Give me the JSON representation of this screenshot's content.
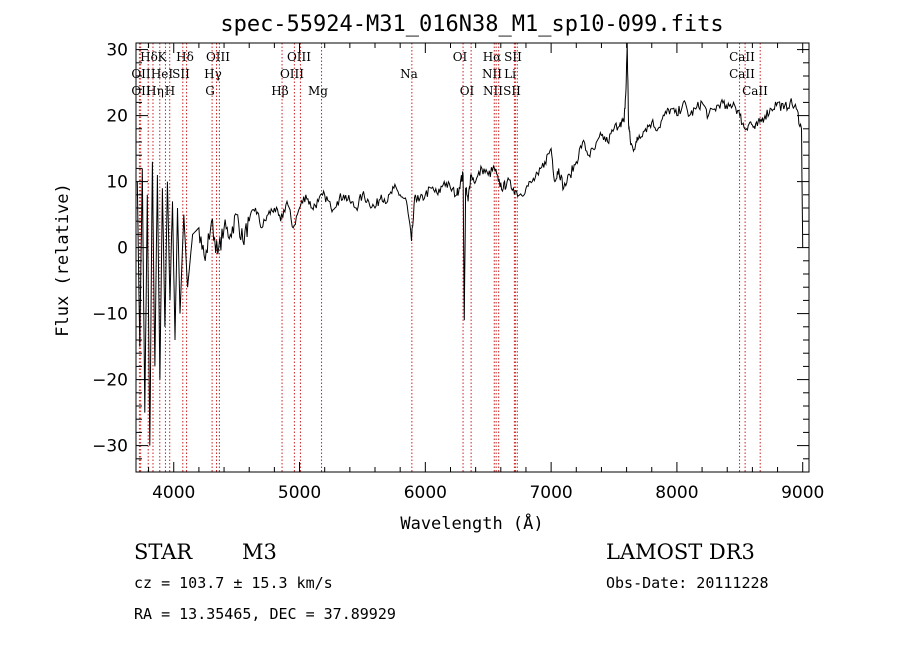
{
  "chart_data": {
    "type": "line",
    "title": "spec-55924-M31_016N38_M1_sp10-099.fits",
    "xlabel": "Wavelength (Å)",
    "ylabel": "Flux (relative)",
    "xlim": [
      3700,
      9050
    ],
    "ylim": [
      -34,
      31
    ],
    "xticks": [
      4000,
      5000,
      6000,
      7000,
      8000,
      9000
    ],
    "yticks": [
      -30,
      -20,
      -10,
      0,
      10,
      20,
      30
    ],
    "ytick_labels": [
      "−30",
      "−20",
      "−10",
      "0",
      "10",
      "20",
      "30"
    ],
    "series": [
      {
        "name": "flux",
        "x": [
          3710,
          3730,
          3750,
          3770,
          3790,
          3810,
          3830,
          3850,
          3870,
          3890,
          3910,
          3930,
          3950,
          3970,
          3990,
          4010,
          4030,
          4050,
          4080,
          4110,
          4150,
          4200,
          4250,
          4300,
          4350,
          4400,
          4450,
          4500,
          4550,
          4600,
          4650,
          4700,
          4750,
          4800,
          4850,
          4900,
          4950,
          5000,
          5050,
          5100,
          5150,
          5200,
          5250,
          5300,
          5350,
          5400,
          5450,
          5500,
          5550,
          5600,
          5650,
          5700,
          5750,
          5800,
          5850,
          5890,
          5920,
          5950,
          6000,
          6050,
          6100,
          6150,
          6200,
          6250,
          6280,
          6300,
          6310,
          6320,
          6340,
          6360,
          6400,
          6450,
          6500,
          6550,
          6580,
          6620,
          6650,
          6700,
          6750,
          6800,
          6850,
          6900,
          6950,
          7000,
          7030,
          7060,
          7100,
          7150,
          7200,
          7250,
          7300,
          7350,
          7400,
          7450,
          7500,
          7550,
          7580,
          7595,
          7605,
          7615,
          7630,
          7650,
          7680,
          7700,
          7750,
          7800,
          7850,
          7900,
          7950,
          8000,
          8050,
          8100,
          8150,
          8200,
          8250,
          8300,
          8350,
          8400,
          8450,
          8500,
          8540,
          8580,
          8620,
          8660,
          8700,
          8750,
          8800,
          8850,
          8900,
          8950,
          8990,
          9000
        ],
        "values": [
          10,
          -15,
          12,
          -25,
          8,
          -30,
          13,
          -18,
          11,
          -20,
          9,
          -12,
          10,
          -8,
          7,
          -14,
          6,
          -10,
          5,
          -6,
          2,
          3,
          -2,
          4,
          -1,
          3,
          2,
          5,
          1,
          4,
          6,
          3,
          5,
          6,
          4,
          7,
          3,
          6,
          8,
          6,
          7,
          8,
          6,
          7,
          8,
          7,
          6,
          8,
          7,
          6,
          8,
          7,
          9,
          8,
          7,
          1,
          8,
          7,
          8,
          9,
          8,
          10,
          9,
          8,
          10,
          11,
          -11,
          9,
          7,
          11,
          10,
          12,
          11,
          12,
          10,
          9,
          10,
          9,
          8,
          9,
          10,
          11,
          13,
          15,
          10,
          12,
          9,
          11,
          13,
          16,
          14,
          15,
          17,
          16,
          18,
          19,
          19,
          24,
          31,
          19,
          16,
          15,
          16,
          17,
          18,
          19,
          18,
          20,
          21,
          20,
          22,
          20,
          21,
          22,
          20,
          21,
          22,
          21,
          22,
          20,
          18,
          19,
          18,
          19,
          20,
          21,
          22,
          21,
          22,
          21,
          18,
          0
        ]
      }
    ],
    "lines": [
      {
        "name": "Hδ",
        "x": 3797
      },
      {
        "name": "OII",
        "x": 3727
      },
      {
        "name": "OII",
        "x": 3737
      },
      {
        "name": "K",
        "x": 3934
      },
      {
        "name": "HeI",
        "x": 3889
      },
      {
        "name": "Hη",
        "x": 3835
      },
      {
        "name": "H",
        "x": 3968
      },
      {
        "name": "Hδ",
        "x": 4102
      },
      {
        "name": "SII",
        "x": 4072
      },
      {
        "name": "OIII",
        "x": 4363
      },
      {
        "name": "Hγ",
        "x": 4340
      },
      {
        "name": "G",
        "x": 4305
      },
      {
        "name": "Hβ",
        "x": 4861
      },
      {
        "name": "OIII",
        "x": 4959
      },
      {
        "name": "OIII",
        "x": 5007
      },
      {
        "name": "Mg",
        "x": 5175
      },
      {
        "name": "Na",
        "x": 5893
      },
      {
        "name": "OI",
        "x": 6300
      },
      {
        "name": "OI",
        "x": 6364
      },
      {
        "name": "Hα",
        "x": 6563
      },
      {
        "name": "NII",
        "x": 6548
      },
      {
        "name": "NII",
        "x": 6583
      },
      {
        "name": "SII",
        "x": 6716
      },
      {
        "name": "Li",
        "x": 6708
      },
      {
        "name": "SII",
        "x": 6731
      },
      {
        "name": "CaII",
        "x": 8498
      },
      {
        "name": "CaII",
        "x": 8542
      },
      {
        "name": "CaII",
        "x": 8662
      }
    ],
    "line_label_text": {
      "row1": [
        "Hδ",
        "K",
        "Hδ",
        "OIII",
        "OIII",
        "OI",
        "Hα",
        "SII",
        "CaII"
      ],
      "row2": [
        "OII",
        "HeI",
        "SII",
        "Hγ",
        "OIII",
        "Na",
        "NII",
        "Li",
        "CaII"
      ],
      "row3": [
        "OII",
        "Hη",
        "H",
        "G",
        "Hβ",
        "Mg",
        "OI",
        "NII",
        "SII",
        "CaII"
      ]
    }
  },
  "info": {
    "object_class": "STAR",
    "subclass": "M3",
    "survey": "LAMOST DR3",
    "redshift_text": "cz = 103.7 ± 15.3 km/s",
    "obs_date": "Obs-Date: 20111228",
    "coords": "RA =  13.35465, DEC =  37.89929"
  }
}
